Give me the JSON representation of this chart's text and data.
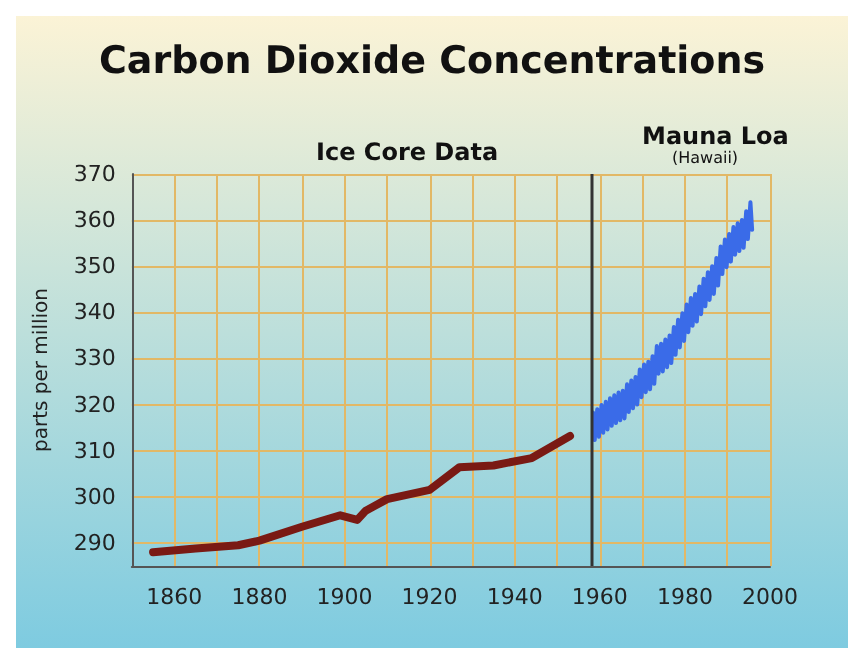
{
  "chart_data": {
    "type": "line",
    "title": "Carbon Dioxide Concentrations",
    "ylabel": "parts per million",
    "annotations": [
      "Ice Core Data",
      "Mauna Loa",
      "(Hawaii)"
    ],
    "xlim": [
      1850,
      2000
    ],
    "xticks": [
      {
        "value": 1850,
        "label": null
      },
      1860,
      {
        "value": 1870,
        "label": null
      },
      1880,
      {
        "value": 1890,
        "label": null
      },
      1900,
      {
        "value": 1910,
        "label": null
      },
      1920,
      {
        "value": 1930,
        "label": null
      },
      1940,
      {
        "value": 1950,
        "label": null
      },
      1960,
      {
        "value": 1970,
        "label": null
      },
      1980,
      {
        "value": 1990,
        "label": null
      },
      2000
    ],
    "ylim": [
      285,
      370
    ],
    "yticks": [
      290,
      300,
      310,
      320,
      330,
      340,
      350,
      360,
      370
    ],
    "grid": true,
    "line_style": "solid",
    "marker": "none",
    "ref_lines": [
      {
        "axis": "x",
        "value": 1958,
        "label": null,
        "color": "#333333"
      }
    ],
    "series": [
      {
        "color": "#7a1a14",
        "x": [
          1855,
          1865,
          1875,
          1880,
          1890,
          1899,
          1903,
          1905,
          1910,
          1920,
          1927,
          1935,
          1944,
          1953
        ],
        "values": [
          288,
          288.8,
          289.5,
          290.5,
          293.5,
          296,
          295,
          297,
          299.5,
          301.5,
          306.4,
          306.8,
          308.4,
          313.2
        ]
      },
      {
        "color": "#3a6be8",
        "x": [
          1958.4,
          1958.8,
          1959.4,
          1959.8,
          1960.4,
          1960.8,
          1961.4,
          1961.8,
          1962.4,
          1962.8,
          1963.4,
          1963.8,
          1964.4,
          1964.8,
          1965.4,
          1965.8,
          1966.4,
          1966.8,
          1967.4,
          1967.8,
          1968.4,
          1968.8,
          1969.4,
          1969.8,
          1970.4,
          1970.8,
          1971.4,
          1971.8,
          1972.4,
          1972.8,
          1973.4,
          1973.8,
          1974.4,
          1974.8,
          1975.4,
          1975.8,
          1976.4,
          1976.8,
          1977.4,
          1977.8,
          1978.4,
          1978.8,
          1979.4,
          1979.8,
          1980.4,
          1980.8,
          1981.4,
          1981.8,
          1982.4,
          1982.8,
          1983.4,
          1983.8,
          1984.4,
          1984.8,
          1985.4,
          1985.8,
          1986.4,
          1986.8,
          1987.4,
          1987.8,
          1988.4,
          1988.8,
          1989.4,
          1989.8,
          1990.4,
          1990.8,
          1991.4,
          1991.8,
          1992.4,
          1992.8,
          1993.4,
          1993.8,
          1994.4,
          1994.8,
          1995.4,
          1995.8
        ],
        "values": [
          318.3,
          312.3,
          319.0,
          313.0,
          319.9,
          313.9,
          320.6,
          314.6,
          321.4,
          315.4,
          322.0,
          316.0,
          322.6,
          316.6,
          323.0,
          317.0,
          324.4,
          318.4,
          325.2,
          319.2,
          326.0,
          320.0,
          327.6,
          321.6,
          328.7,
          322.7,
          329.3,
          323.3,
          330.5,
          324.5,
          332.7,
          326.7,
          333.2,
          327.2,
          334.1,
          328.1,
          335.0,
          329.0,
          336.8,
          330.8,
          338.4,
          332.4,
          339.8,
          333.8,
          341.7,
          335.7,
          343.1,
          337.1,
          344.0,
          338.0,
          345.6,
          339.6,
          347.3,
          341.3,
          348.7,
          342.7,
          350.0,
          344.0,
          351.8,
          345.8,
          354.3,
          348.3,
          355.8,
          349.8,
          357.0,
          351.0,
          358.5,
          352.5,
          359.3,
          353.3,
          360.0,
          354.0,
          361.9,
          355.9,
          363.9,
          357.9
        ]
      }
    ]
  }
}
